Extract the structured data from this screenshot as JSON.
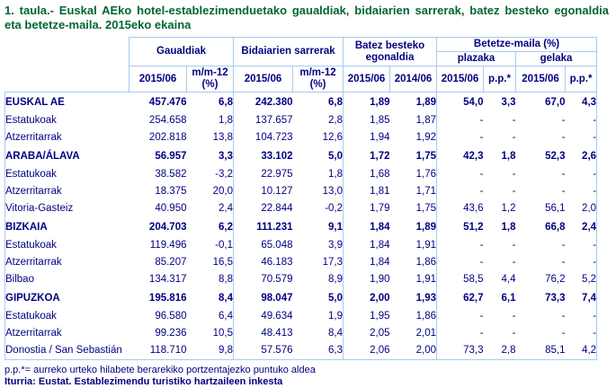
{
  "title": "1. taula.- Euskal AEko hotel-establezimenduetako gaualdiak, bidaiarien sarrerak, batez besteko egonaldia eta betetze-maila. 2015eko ekaina",
  "colors": {
    "title_text": "#006633",
    "table_text": "#000082",
    "border": "#a6cbf0"
  },
  "table": {
    "groups": {
      "gaualdiak": "Gaualdiak",
      "bidaiarien": "Bidaiarien sarrerak",
      "batez": "Batez besteko egonaldia",
      "betetze": "Betetze-maila (%)",
      "plazaka": "plazaka",
      "gelaka": "gelaka"
    },
    "subheaders": [
      "2015/06",
      "m/m-12 (%)",
      "2015/06",
      "m/m-12 (%)",
      "2015/06",
      "2014/06",
      "2015/06",
      "p.p.*",
      "2015/06",
      "p.p.*"
    ],
    "rows": [
      {
        "label": "EUSKAL AE",
        "bold": true,
        "values": [
          "457.476",
          "6,8",
          "242.380",
          "6,8",
          "1,89",
          "1,89",
          "54,0",
          "3,3",
          "67,0",
          "4,3"
        ]
      },
      {
        "label": "Estatukoak",
        "bold": false,
        "values": [
          "254.658",
          "1,8",
          "137.657",
          "2,8",
          "1,85",
          "1,87",
          "-",
          "-",
          "-",
          "-"
        ]
      },
      {
        "label": "Atzerritarrak",
        "bold": false,
        "values": [
          "202.818",
          "13,8",
          "104.723",
          "12,6",
          "1,94",
          "1,92",
          "-",
          "-",
          "-",
          "-"
        ]
      },
      {
        "label": "ARABA/ÁLAVA",
        "bold": true,
        "values": [
          "56.957",
          "3,3",
          "33.102",
          "5,0",
          "1,72",
          "1,75",
          "42,3",
          "1,8",
          "52,3",
          "2,6"
        ]
      },
      {
        "label": "Estatukoak",
        "bold": false,
        "values": [
          "38.582",
          "-3,2",
          "22.975",
          "1,8",
          "1,68",
          "1,76",
          "-",
          "-",
          "-",
          "-"
        ]
      },
      {
        "label": "Atzerritarrak",
        "bold": false,
        "values": [
          "18.375",
          "20,0",
          "10.127",
          "13,0",
          "1,81",
          "1,71",
          "-",
          "-",
          "-",
          "-"
        ]
      },
      {
        "label": "Vitoria-Gasteiz",
        "bold": false,
        "values": [
          "40.950",
          "2,4",
          "22.844",
          "-0,2",
          "1,79",
          "1,75",
          "43,6",
          "1,2",
          "56,1",
          "2,0"
        ]
      },
      {
        "label": "BIZKAIA",
        "bold": true,
        "values": [
          "204.703",
          "6,2",
          "111.231",
          "9,1",
          "1,84",
          "1,89",
          "51,2",
          "1,8",
          "66,8",
          "2,4"
        ]
      },
      {
        "label": "Estatukoak",
        "bold": false,
        "values": [
          "119.496",
          "-0,1",
          "65.048",
          "3,9",
          "1,84",
          "1,91",
          "-",
          "-",
          "-",
          "-"
        ]
      },
      {
        "label": "Atzerritarrak",
        "bold": false,
        "values": [
          "85.207",
          "16,5",
          "46.183",
          "17,3",
          "1,84",
          "1,86",
          "-",
          "-",
          "-",
          "-"
        ]
      },
      {
        "label": "Bilbao",
        "bold": false,
        "values": [
          "134.317",
          "8,8",
          "70.579",
          "8,9",
          "1,90",
          "1,91",
          "58,5",
          "4,4",
          "76,2",
          "5,2"
        ]
      },
      {
        "label": "GIPUZKOA",
        "bold": true,
        "values": [
          "195.816",
          "8,4",
          "98.047",
          "5,0",
          "2,00",
          "1,93",
          "62,7",
          "6,1",
          "73,3",
          "7,4"
        ]
      },
      {
        "label": "Estatukoak",
        "bold": false,
        "values": [
          "96.580",
          "6,4",
          "49.634",
          "1,9",
          "1,95",
          "1,86",
          "-",
          "-",
          "-",
          "-"
        ]
      },
      {
        "label": "Atzerritarrak",
        "bold": false,
        "values": [
          "99.236",
          "10,5",
          "48.413",
          "8,4",
          "2,05",
          "2,01",
          "-",
          "-",
          "-",
          "-"
        ]
      },
      {
        "label": "Donostia / San Sebastián",
        "bold": false,
        "values": [
          "118.710",
          "9,8",
          "57.576",
          "6,3",
          "2,06",
          "2,00",
          "73,3",
          "2,8",
          "85,1",
          "4,2"
        ]
      }
    ]
  },
  "footnotes": {
    "note": "p.p.*= aurreko urteko hilabete berarekiko portzentajezko puntuko aldea",
    "source": "Iturria: Eustat. Establezimendu turistiko hartzaileen inkesta"
  }
}
